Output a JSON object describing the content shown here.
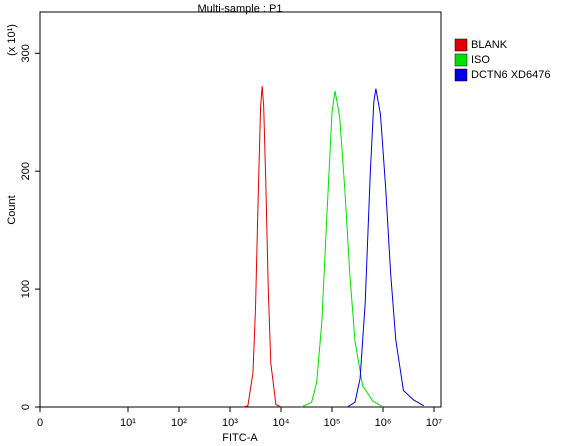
{
  "chart_data": {
    "type": "histogram-overlay",
    "title": "Multi-sample : P1",
    "xlabel": "FITC-A",
    "ylabel": "Count",
    "ymultiplier": "(x 10¹)",
    "xscale": "log",
    "xlim": [
      0,
      13700000
    ],
    "ylim": [
      0,
      335
    ],
    "xticks": [
      0,
      {
        "value": 10,
        "label": "10¹"
      },
      {
        "value": 100,
        "label": "10²"
      },
      {
        "value": 1000,
        "label": "10³"
      },
      {
        "value": 10000,
        "label": "10⁴"
      },
      {
        "value": 100000,
        "label": "10⁵"
      },
      {
        "value": 1000000,
        "label": "10⁶"
      },
      {
        "value": 10000000,
        "label": "10⁷"
      }
    ],
    "yticks": [
      0,
      100,
      200,
      300
    ],
    "legend": "right",
    "series": [
      {
        "name": "BLANK",
        "color": "#e00000",
        "x": [
          1778,
          2239,
          2818,
          3162,
          3548,
          3981,
          4266,
          4571,
          5012,
          5623,
          6310,
          7943,
          10000
        ],
        "values": [
          0,
          1,
          29,
          84,
          174,
          255,
          272,
          255,
          193,
          100,
          37,
          2,
          0
        ]
      },
      {
        "name": "ISO",
        "color": "#00e000",
        "x": [
          25119,
          39811,
          50119,
          63096,
          79433,
          100000,
          114815,
          141254,
          177828,
          223872,
          281838,
          398107,
          630957,
          1000000
        ],
        "values": [
          0,
          4,
          21,
          72,
          163,
          250,
          268,
          246,
          185,
          112,
          56,
          18,
          5,
          0
        ]
      },
      {
        "name": "DCTN6 XD6476",
        "color": "#0000e0",
        "x": [
          199526,
          281838,
          354813,
          446684,
          562341,
          660693,
          724436,
          891251,
          1122018,
          1412538,
          1778279,
          2511886,
          3981072,
          6309573
        ],
        "values": [
          0,
          4,
          24,
          88,
          198,
          259,
          270,
          248,
          187,
          113,
          57,
          14,
          6,
          1
        ]
      }
    ]
  }
}
